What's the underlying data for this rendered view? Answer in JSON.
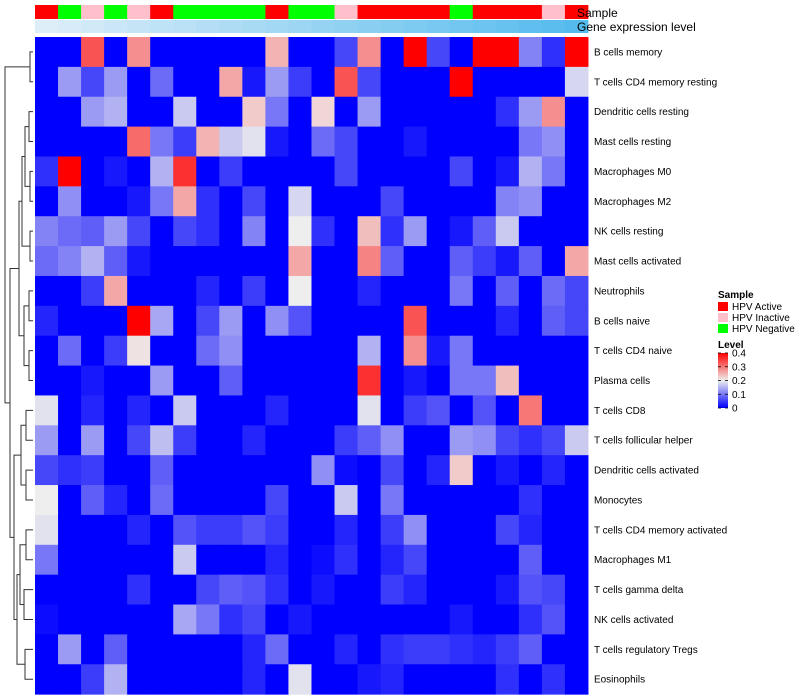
{
  "chart_data": {
    "type": "heatmap",
    "track_labels": {
      "sample": "Sample",
      "expression": "Gene expression level"
    },
    "sample_groups": [
      "HPV Active",
      "HPV Negative",
      "HPV Inactive",
      "HPV Negative",
      "HPV Inactive",
      "HPV Active",
      "HPV Negative",
      "HPV Negative",
      "HPV Negative",
      "HPV Negative",
      "HPV Active",
      "HPV Negative",
      "HPV Negative",
      "HPV Inactive",
      "HPV Active",
      "HPV Active",
      "HPV Active",
      "HPV Active",
      "HPV Negative",
      "HPV Active",
      "HPV Active",
      "HPV Active",
      "HPV Inactive",
      "HPV Active"
    ],
    "rows": [
      "B cells memory",
      "T cells CD4 memory resting",
      "Dendritic cells resting",
      "Mast cells resting",
      "Macrophages M0",
      "Macrophages M2",
      "NK cells resting",
      "Mast cells activated",
      "Neutrophils",
      "B cells naive",
      "T cells CD4 naive",
      "Plasma cells",
      "T cells CD8",
      "T cells follicular helper",
      "Dendritic cells activated",
      "Monocytes",
      "T cells CD4 memory activated",
      "Macrophages M1",
      "T cells gamma delta",
      "NK cells activated",
      "T cells regulatory  Tregs",
      "Eosinophils"
    ],
    "values": [
      [
        0,
        0,
        0.33,
        0,
        0.28,
        0,
        0,
        0,
        0,
        0,
        0.25,
        0,
        0,
        0.06,
        0.28,
        0,
        0.4,
        0.06,
        0,
        0.4,
        0.4,
        0.11,
        0.04,
        0.4
      ],
      [
        0,
        0.13,
        0.06,
        0.13,
        0,
        0.09,
        0,
        0,
        0.26,
        0.02,
        0.13,
        0.05,
        0,
        0.33,
        0.06,
        0,
        0,
        0,
        0.4,
        0,
        0,
        0,
        0,
        0.18
      ],
      [
        0,
        0,
        0.13,
        0.15,
        0,
        0,
        0.17,
        0,
        0,
        0.23,
        0.1,
        0,
        0.22,
        0,
        0.13,
        0,
        0,
        0,
        0,
        0,
        0.04,
        0.13,
        0.28,
        0
      ],
      [
        0,
        0,
        0,
        0,
        0.31,
        0.1,
        0.05,
        0.25,
        0.17,
        0.19,
        0.02,
        0,
        0.09,
        0.06,
        0,
        0,
        0.02,
        0,
        0,
        0,
        0,
        0.1,
        0.12,
        0
      ],
      [
        0.04,
        0.4,
        0,
        0.02,
        0,
        0.15,
        0.36,
        0,
        0.05,
        0,
        0,
        0,
        0,
        0.06,
        0,
        0,
        0,
        0,
        0.06,
        0,
        0.02,
        0.15,
        0.1,
        0
      ],
      [
        0,
        0.12,
        0,
        0,
        0.02,
        0.1,
        0.26,
        0.04,
        0,
        0.06,
        0,
        0.18,
        0,
        0,
        0,
        0.06,
        0,
        0,
        0,
        0,
        0.11,
        0.12,
        0,
        0
      ],
      [
        0.11,
        0.09,
        0.08,
        0.13,
        0.06,
        0,
        0.06,
        0.04,
        0,
        0.11,
        0,
        0.2,
        0.04,
        0,
        0.24,
        0.04,
        0.13,
        0,
        0.02,
        0.08,
        0.17,
        0,
        0,
        0
      ],
      [
        0.09,
        0.11,
        0.15,
        0.08,
        0.02,
        0,
        0,
        0,
        0,
        0,
        0,
        0.26,
        0,
        0,
        0.29,
        0.08,
        0,
        0,
        0.08,
        0.05,
        0.02,
        0.08,
        0,
        0.26
      ],
      [
        0,
        0,
        0.05,
        0.26,
        0,
        0,
        0,
        0.03,
        0,
        0.05,
        0,
        0.2,
        0,
        0,
        0.03,
        0,
        0,
        0,
        0.1,
        0,
        0.08,
        0,
        0.09,
        0.06
      ],
      [
        0.03,
        0,
        0,
        0,
        0.4,
        0.14,
        0,
        0.06,
        0.13,
        0,
        0.12,
        0.07,
        0,
        0,
        0,
        0,
        0.33,
        0,
        0,
        0,
        0.03,
        0,
        0.08,
        0.06
      ],
      [
        0,
        0.09,
        0,
        0.05,
        0.21,
        0,
        0,
        0.09,
        0.12,
        0,
        0,
        0,
        0,
        0,
        0.15,
        0,
        0.28,
        0.02,
        0.1,
        0,
        0,
        0,
        0,
        0
      ],
      [
        0,
        0,
        0.02,
        0,
        0,
        0.13,
        0,
        0,
        0.08,
        0,
        0,
        0,
        0,
        0,
        0.36,
        0,
        0.02,
        0,
        0.1,
        0.1,
        0.24,
        0,
        0,
        0
      ],
      [
        0.19,
        0,
        0.03,
        0,
        0.03,
        0,
        0.17,
        0,
        0,
        0,
        0.03,
        0,
        0,
        0,
        0.19,
        0,
        0.05,
        0.07,
        0,
        0.07,
        0,
        0.3,
        0,
        0
      ],
      [
        0.13,
        0,
        0.13,
        0,
        0.06,
        0.16,
        0.05,
        0,
        0,
        0.03,
        0,
        0,
        0,
        0.05,
        0.08,
        0.12,
        0,
        0,
        0.13,
        0.12,
        0.06,
        0.04,
        0.06,
        0.17
      ],
      [
        0.06,
        0.04,
        0.05,
        0,
        0,
        0.08,
        0,
        0,
        0,
        0,
        0,
        0,
        0.12,
        0.01,
        0,
        0.06,
        0,
        0.03,
        0.23,
        0,
        0.02,
        0,
        0.03,
        0
      ],
      [
        0.2,
        0,
        0.08,
        0.03,
        0,
        0.09,
        0,
        0,
        0,
        0,
        0.06,
        0,
        0,
        0.17,
        0,
        0.1,
        0,
        0,
        0,
        0,
        0,
        0.04,
        0,
        0
      ],
      [
        0.19,
        0,
        0,
        0,
        0.03,
        0,
        0.07,
        0.05,
        0.05,
        0.07,
        0.05,
        0,
        0,
        0.03,
        0,
        0.05,
        0.12,
        0,
        0,
        0,
        0.06,
        0.03,
        0,
        0
      ],
      [
        0.1,
        0,
        0,
        0,
        0,
        0,
        0.17,
        0,
        0,
        0,
        0.03,
        0,
        0.01,
        0.04,
        0,
        0.03,
        0.06,
        0,
        0,
        0,
        0,
        0.08,
        0,
        0
      ],
      [
        0,
        0,
        0,
        0,
        0.04,
        0,
        0,
        0.06,
        0.08,
        0.07,
        0.04,
        0,
        0.02,
        0,
        0,
        0.05,
        0.03,
        0,
        0,
        0,
        0.02,
        0.07,
        0.06,
        0
      ],
      [
        0.01,
        0,
        0,
        0,
        0,
        0,
        0.14,
        0.1,
        0.04,
        0.06,
        0,
        0.02,
        0,
        0,
        0,
        0,
        0,
        0,
        0.02,
        0,
        0,
        0.04,
        0.07,
        0
      ],
      [
        0,
        0.13,
        0,
        0.08,
        0,
        0,
        0,
        0,
        0,
        0.03,
        0.09,
        0,
        0,
        0.03,
        0,
        0.04,
        0.05,
        0.05,
        0.04,
        0.03,
        0.05,
        0.08,
        0,
        0
      ],
      [
        0,
        0,
        0.05,
        0.15,
        0,
        0,
        0,
        0,
        0,
        0.03,
        0,
        0.19,
        0,
        0,
        0.02,
        0.03,
        0,
        0,
        0,
        0,
        0.04,
        0,
        0.04,
        0
      ]
    ],
    "legend": {
      "sample_title": "Sample",
      "sample_items": [
        {
          "label": "HPV Active",
          "color": "#ff0000"
        },
        {
          "label": "HPV Inactive",
          "color": "#ffc0cb"
        },
        {
          "label": "HPV Negative",
          "color": "#00ff00"
        }
      ],
      "level_title": "Level",
      "ticks": [
        {
          "value": 0,
          "label": "0"
        },
        {
          "value": 0.1,
          "label": "0.1"
        },
        {
          "value": 0.2,
          "label": "0.2"
        },
        {
          "value": 0.3,
          "label": "0.3"
        },
        {
          "value": 0.4,
          "label": "0.4"
        }
      ],
      "range": [
        0,
        0.4
      ]
    },
    "colors": {
      "low": "#0000ff",
      "mid": "#eeeeee",
      "high": "#ff0000",
      "expression_track": "#55bbee"
    }
  }
}
